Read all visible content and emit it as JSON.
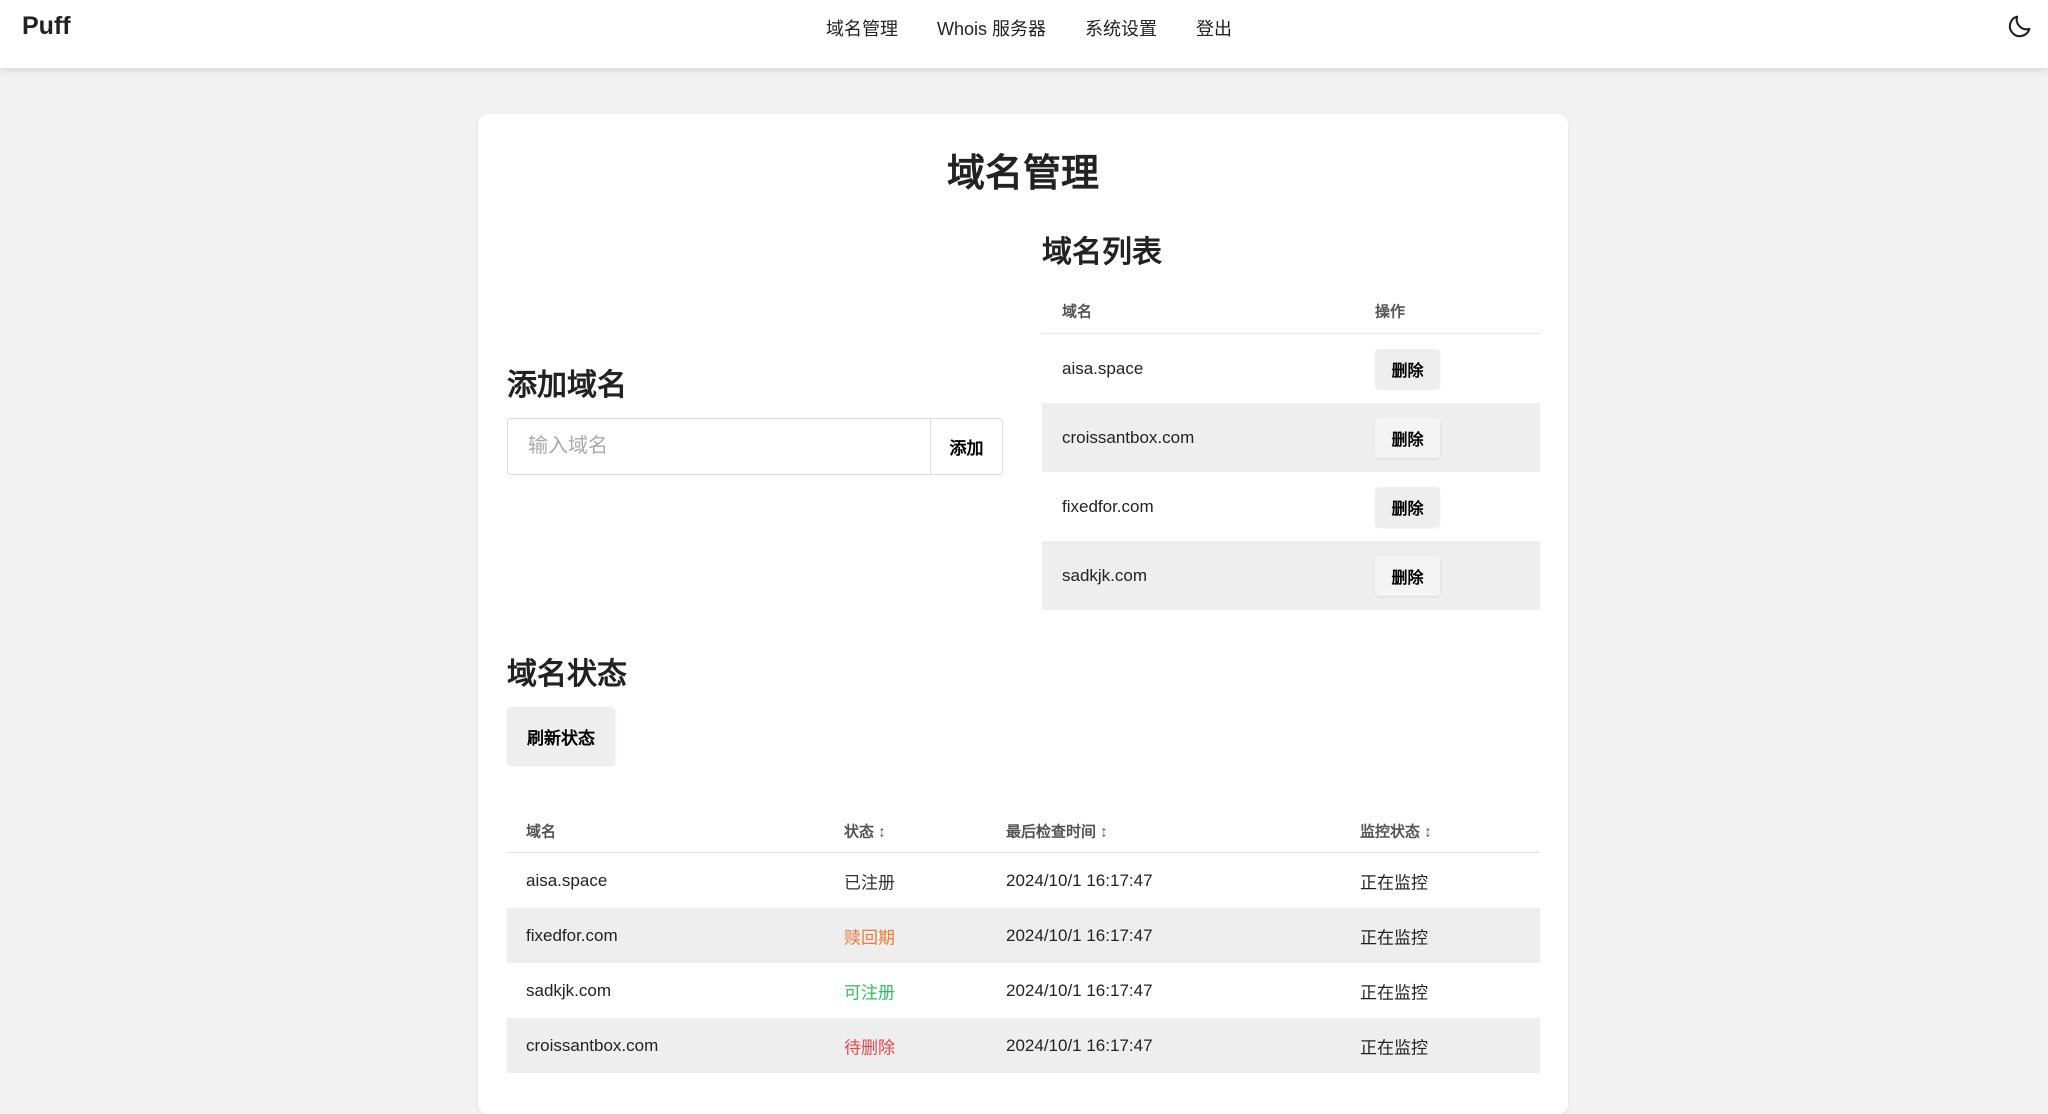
{
  "header": {
    "logo": "Puff",
    "nav": [
      "域名管理",
      "Whois 服务器",
      "系统设置",
      "登出"
    ],
    "theme_icon": "moon-icon"
  },
  "page_title": "域名管理",
  "add": {
    "heading": "添加域名",
    "placeholder": "输入域名",
    "value": "",
    "button": "添加"
  },
  "list": {
    "heading": "域名列表",
    "columns": [
      "域名",
      "操作"
    ],
    "delete_label": "删除",
    "rows": [
      "aisa.space",
      "croissantbox.com",
      "fixedfor.com",
      "sadkjk.com"
    ]
  },
  "status": {
    "heading": "域名状态",
    "refresh": "刷新状态",
    "columns": [
      "域名",
      "状态 ↕",
      "最后检查时间 ↕",
      "监控状态 ↕"
    ],
    "rows": [
      {
        "domain": "aisa.space",
        "status": "已注册",
        "status_color": "#333333",
        "checked": "2024/10/1 16:17:47",
        "monitor": "正在监控"
      },
      {
        "domain": "fixedfor.com",
        "status": "赎回期",
        "status_color": "#f07a3a",
        "checked": "2024/10/1 16:17:47",
        "monitor": "正在监控"
      },
      {
        "domain": "sadkjk.com",
        "status": "可注册",
        "status_color": "#2fbf5f",
        "checked": "2024/10/1 16:17:47",
        "monitor": "正在监控"
      },
      {
        "domain": "croissantbox.com",
        "status": "待删除",
        "status_color": "#e8474f",
        "checked": "2024/10/1 16:17:47",
        "monitor": "正在监控"
      }
    ]
  }
}
